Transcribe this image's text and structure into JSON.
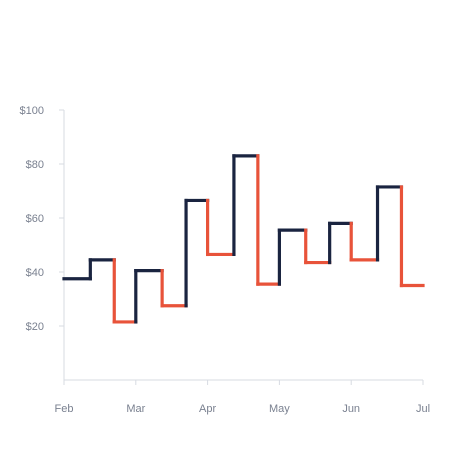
{
  "chart_data": {
    "type": "line",
    "subtype": "step",
    "x_ticks": [
      "Feb",
      "Mar",
      "Apr",
      "May",
      "Jun",
      "Jul"
    ],
    "y_ticks": [
      "$20",
      "$40",
      "$60",
      "$80",
      "$100"
    ],
    "y_tick_values": [
      20,
      40,
      60,
      80,
      100
    ],
    "ylim": [
      0,
      100
    ],
    "xlim": [
      "Feb",
      "Jul"
    ],
    "title": "",
    "xlabel": "",
    "ylabel": "",
    "grid": false,
    "x_step_boundaries": [
      "Feb 1",
      "Feb 12",
      "Feb 22",
      "Mar 1",
      "Mar 12",
      "Mar 22",
      "Apr 1",
      "Apr 12",
      "Apr 22",
      "May 1",
      "May 12",
      "May 22",
      "Jun 1",
      "Jun 12",
      "Jun 22",
      "Jul 1"
    ],
    "values": [
      37.5,
      44.5,
      21.5,
      40.5,
      27.5,
      66.5,
      46.5,
      83,
      35.5,
      55.5,
      43.5,
      58,
      44.5,
      71.5,
      35
    ],
    "colors": {
      "up": "#1a2440",
      "down": "#e8533a"
    }
  }
}
